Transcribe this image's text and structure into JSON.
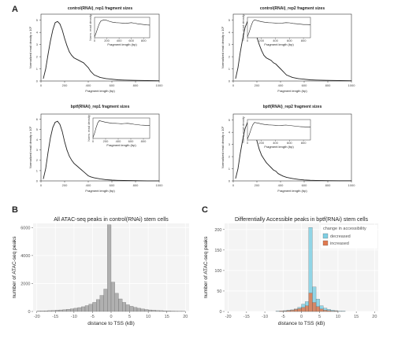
{
  "panel_labels": {
    "a": "A",
    "b": "B",
    "c": "C"
  },
  "chart_data": [
    {
      "id": "a1",
      "type": "line",
      "title": "control(RNAi)_rep1 fragment sizes",
      "xlabel": "Fragment length (bp)",
      "ylabel": "Normalized read density x 10³",
      "xticks": [
        0,
        200,
        400,
        600,
        800,
        1000
      ],
      "yticks": [
        0,
        1,
        2,
        3,
        4,
        5
      ],
      "xlim": [
        0,
        1000
      ],
      "ylim": [
        0,
        5.5
      ],
      "x": [
        20,
        40,
        60,
        80,
        100,
        120,
        140,
        160,
        180,
        200,
        220,
        240,
        260,
        280,
        300,
        320,
        340,
        360,
        380,
        400,
        420,
        450,
        500,
        550,
        600,
        650,
        700,
        800,
        900,
        1000
      ],
      "values": [
        0.2,
        1.0,
        2.2,
        3.3,
        4.2,
        4.8,
        4.9,
        4.7,
        4.2,
        3.5,
        2.9,
        2.4,
        2.1,
        1.9,
        1.8,
        1.7,
        1.6,
        1.5,
        1.3,
        1.1,
        0.8,
        0.5,
        0.3,
        0.2,
        0.15,
        0.1,
        0.08,
        0.05,
        0.03,
        0.02
      ],
      "inset": {
        "xlabel": "Fragment length (bp)",
        "ylabel": "Norm. read density",
        "xticks": [
          0,
          200,
          400,
          600,
          800
        ],
        "xlim": [
          0,
          900
        ],
        "x": [
          0,
          25,
          50,
          75,
          100,
          150,
          200,
          250,
          300,
          350,
          400,
          450,
          500,
          550,
          600,
          650,
          700,
          750,
          800,
          850,
          900
        ],
        "values": [
          0.05,
          0.25,
          0.5,
          0.72,
          0.88,
          0.95,
          0.92,
          0.86,
          0.82,
          0.8,
          0.79,
          0.78,
          0.76,
          0.78,
          0.8,
          0.77,
          0.74,
          0.72,
          0.7,
          0.68,
          0.67
        ]
      }
    },
    {
      "id": "a2",
      "type": "line",
      "title": "control(RNAi)_rep2 fragment sizes",
      "xlabel": "Fragment length (bp)",
      "ylabel": "Normalized read density x 10³",
      "xticks": [
        0,
        200,
        400,
        600,
        800,
        1000
      ],
      "yticks": [
        0,
        1,
        2,
        3,
        4,
        5
      ],
      "xlim": [
        0,
        1000
      ],
      "ylim": [
        0,
        5.5
      ],
      "x": [
        20,
        40,
        60,
        80,
        100,
        120,
        140,
        160,
        180,
        200,
        220,
        240,
        260,
        280,
        300,
        320,
        340,
        360,
        380,
        400,
        420,
        450,
        500,
        550,
        600,
        650,
        700,
        800,
        900,
        1000
      ],
      "values": [
        0.2,
        1.1,
        2.4,
        3.5,
        4.4,
        4.9,
        5.0,
        4.8,
        4.3,
        3.6,
        3.0,
        2.5,
        2.1,
        1.9,
        1.8,
        1.7,
        1.5,
        1.4,
        1.2,
        1.0,
        0.8,
        0.5,
        0.3,
        0.2,
        0.15,
        0.1,
        0.08,
        0.05,
        0.03,
        0.02
      ],
      "inset": {
        "xlabel": "Fragment length (bp)",
        "ylabel": "Norm. read density",
        "xticks": [
          0,
          200,
          400,
          600,
          800
        ],
        "xlim": [
          0,
          900
        ],
        "x": [
          0,
          25,
          50,
          75,
          100,
          150,
          200,
          250,
          300,
          350,
          400,
          450,
          500,
          550,
          600,
          650,
          700,
          750,
          800,
          850,
          900
        ],
        "values": [
          0.05,
          0.3,
          0.6,
          0.85,
          0.95,
          0.9,
          0.85,
          0.82,
          0.8,
          0.79,
          0.78,
          0.77,
          0.78,
          0.8,
          0.79,
          0.76,
          0.74,
          0.72,
          0.7,
          0.7,
          0.69
        ]
      }
    },
    {
      "id": "a3",
      "type": "line",
      "title": "bptf(RNAi)_rep1 fragment sizes",
      "xlabel": "Fragment length (bp)",
      "ylabel": "Normalized read density x 10³",
      "xticks": [
        0,
        200,
        400,
        600,
        800,
        1000
      ],
      "yticks": [
        0,
        1,
        2,
        3,
        4,
        5,
        6
      ],
      "xlim": [
        0,
        1000
      ],
      "ylim": [
        0,
        6.5
      ],
      "x": [
        20,
        40,
        60,
        80,
        100,
        120,
        140,
        160,
        180,
        200,
        220,
        240,
        260,
        280,
        300,
        320,
        340,
        360,
        380,
        400,
        420,
        450,
        500,
        550,
        600,
        650,
        700,
        800,
        900,
        1000
      ],
      "values": [
        0.2,
        1.2,
        2.8,
        4.2,
        5.2,
        5.7,
        5.8,
        5.5,
        4.8,
        3.8,
        3.0,
        2.4,
        2.0,
        1.7,
        1.5,
        1.3,
        1.1,
        0.9,
        0.7,
        0.5,
        0.4,
        0.3,
        0.2,
        0.12,
        0.08,
        0.05,
        0.04,
        0.02,
        0.01,
        0.01
      ],
      "inset": {
        "xlabel": "Fragment length (bp)",
        "ylabel": "Norm. read density",
        "xticks": [
          0,
          200,
          400,
          600,
          800
        ],
        "xlim": [
          0,
          900
        ],
        "x": [
          0,
          25,
          50,
          75,
          100,
          150,
          200,
          250,
          300,
          350,
          400,
          450,
          500,
          550,
          600,
          650,
          700,
          750,
          800,
          850,
          900
        ],
        "values": [
          0.05,
          0.28,
          0.58,
          0.82,
          0.94,
          0.9,
          0.86,
          0.83,
          0.8,
          0.8,
          0.79,
          0.78,
          0.79,
          0.8,
          0.78,
          0.75,
          0.73,
          0.71,
          0.7,
          0.69,
          0.68
        ]
      }
    },
    {
      "id": "a4",
      "type": "line",
      "title": "bptf(RNAi)_rep2 fragment sizes",
      "xlabel": "Fragment length (bp)",
      "ylabel": "Normalized read density x 10³",
      "xticks": [
        0,
        200,
        400,
        600,
        800,
        1000
      ],
      "yticks": [
        0,
        1,
        2,
        3,
        4,
        5
      ],
      "xlim": [
        0,
        1000
      ],
      "ylim": [
        0,
        5.5
      ],
      "x": [
        20,
        40,
        60,
        80,
        100,
        120,
        140,
        160,
        180,
        200,
        220,
        240,
        260,
        280,
        300,
        320,
        340,
        360,
        380,
        400,
        420,
        450,
        500,
        550,
        600,
        650,
        700,
        800,
        900,
        1000
      ],
      "values": [
        0.2,
        1.0,
        2.3,
        3.4,
        4.3,
        4.8,
        4.9,
        4.6,
        4.0,
        3.3,
        2.6,
        2.1,
        1.8,
        1.5,
        1.3,
        1.1,
        0.9,
        0.8,
        0.6,
        0.5,
        0.4,
        0.3,
        0.2,
        0.12,
        0.08,
        0.05,
        0.04,
        0.02,
        0.01,
        0.01
      ],
      "inset": {
        "xlabel": "Fragment length (bp)",
        "ylabel": "Norm. read density",
        "xticks": [
          0,
          200,
          400,
          600,
          800
        ],
        "xlim": [
          0,
          900
        ],
        "x": [
          0,
          25,
          50,
          75,
          100,
          150,
          200,
          250,
          300,
          350,
          400,
          450,
          500,
          550,
          600,
          650,
          700,
          750,
          800,
          850,
          900
        ],
        "values": [
          0.05,
          0.27,
          0.55,
          0.8,
          0.93,
          0.9,
          0.85,
          0.82,
          0.8,
          0.79,
          0.78,
          0.77,
          0.78,
          0.79,
          0.77,
          0.75,
          0.73,
          0.71,
          0.7,
          0.69,
          0.68
        ]
      }
    },
    {
      "id": "b",
      "type": "bar",
      "title": "All ATAC-seq peaks in control(RNAi) stem cells",
      "xlabel": "distance to TSS (kB)",
      "ylabel": "number of ATAC-seq peaks",
      "xticks": [
        -20,
        -15,
        -10,
        -5,
        0,
        5,
        10,
        15,
        20
      ],
      "yticks": [
        0,
        2000,
        4000,
        6000
      ],
      "xlim": [
        -21,
        21
      ],
      "ylim": [
        0,
        6300
      ],
      "grid": true,
      "bins_start": -20,
      "bin_width": 1,
      "series": [
        {
          "color": "#b0b0b0",
          "values": [
            30,
            40,
            50,
            60,
            70,
            90,
            110,
            130,
            160,
            190,
            230,
            280,
            340,
            420,
            520,
            650,
            850,
            1150,
            1600,
            6200,
            2100,
            1300,
            900,
            650,
            480,
            370,
            290,
            230,
            180,
            140,
            110,
            90,
            70,
            60,
            50,
            40,
            30,
            25,
            20,
            15
          ]
        }
      ]
    },
    {
      "id": "c",
      "type": "bar",
      "title": "Differentially Accessible peaks in bptf(RNAi) stem cells",
      "xlabel": "distance to TSS (kB)",
      "ylabel": "number of ATAC-seq peaks",
      "xticks": [
        -20,
        -15,
        -10,
        -5,
        0,
        5,
        10,
        15,
        20
      ],
      "yticks": [
        0,
        50,
        100,
        150,
        200
      ],
      "xlim": [
        -21,
        21
      ],
      "ylim": [
        0,
        215
      ],
      "grid": true,
      "bins_start": -20,
      "bin_width": 1,
      "legend": {
        "title": "change in accessibility",
        "position": "top-right"
      },
      "series": [
        {
          "name": "decreased",
          "color": "#7fcfe3",
          "values": [
            0,
            0,
            0,
            0,
            0,
            0,
            0,
            0,
            0,
            0,
            0,
            0,
            0,
            1,
            1,
            2,
            3,
            4,
            6,
            10,
            18,
            24,
            205,
            60,
            30,
            14,
            8,
            5,
            3,
            2,
            1,
            1,
            0,
            0,
            0,
            0,
            0,
            0,
            0,
            0
          ]
        },
        {
          "name": "increased",
          "color": "#e07a50",
          "values": [
            0,
            0,
            0,
            0,
            0,
            0,
            0,
            0,
            0,
            0,
            0,
            0,
            0,
            0,
            1,
            1,
            2,
            3,
            5,
            7,
            10,
            14,
            45,
            22,
            12,
            6,
            3,
            2,
            1,
            1,
            0,
            0,
            0,
            0,
            0,
            0,
            0,
            0,
            0,
            0
          ]
        }
      ]
    }
  ]
}
